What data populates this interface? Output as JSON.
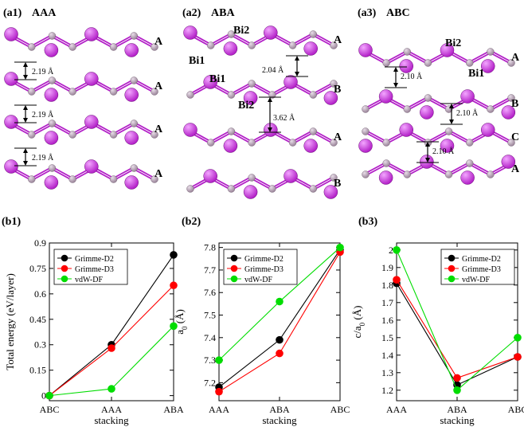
{
  "top_panels": [
    {
      "id": "a1",
      "title": "(a1)",
      "stack": "AAA",
      "layer_labels": [
        "A",
        "A",
        "A",
        "A"
      ],
      "dist_labels": [
        "2.19 Å",
        "2.19 Å",
        "2.19 Å"
      ]
    },
    {
      "id": "a2",
      "title": "(a2)",
      "stack": "ABA",
      "layer_labels": [
        "A",
        "B",
        "A",
        "B"
      ],
      "dist_labels": [
        "2.04 Å",
        "3.62 Å"
      ],
      "atom_labels": [
        "Bi2",
        "Bi1",
        "Bi1",
        "Bi2"
      ]
    },
    {
      "id": "a3",
      "title": "(a3)",
      "stack": "ABC",
      "layer_labels": [
        "A",
        "B",
        "C",
        "A"
      ],
      "dist_labels": [
        "2.10 Å",
        "2.10 Å",
        "2.10 Å"
      ],
      "atom_labels": [
        "Bi2",
        "Bi1"
      ]
    }
  ],
  "colors": {
    "bi": "#b21fc7",
    "p": "#9a8499",
    "grimme_d2": "#000000",
    "grimme_d3": "#ff0000",
    "vdw_df": "#00dd00"
  },
  "chart_data": [
    {
      "id": "b1",
      "panel_title": "(b1)",
      "type": "line",
      "xlabel": "stacking",
      "ylabel": "Total energy (eV/layer)",
      "categories": [
        "ABC",
        "AAA",
        "ABA"
      ],
      "ylim": [
        -0.03,
        0.9
      ],
      "yticks": [
        "0",
        "0.15",
        "0.3",
        "0.45",
        "0.6",
        "0.75",
        "0.9"
      ],
      "legend": "top-left",
      "series": [
        {
          "name": "Grimme-D2",
          "values": [
            0,
            0.3,
            0.83
          ]
        },
        {
          "name": "Grimme-D3",
          "values": [
            0,
            0.28,
            0.65
          ]
        },
        {
          "name": "vdW-DF",
          "values": [
            0,
            0.04,
            0.41
          ]
        }
      ]
    },
    {
      "id": "b2",
      "panel_title": "(b2)",
      "type": "line",
      "xlabel": "stacking",
      "ylabel": "a0 (Å)",
      "categories": [
        "AAA",
        "ABA",
        "ABC"
      ],
      "ylim": [
        7.12,
        7.82
      ],
      "yticks": [
        "7.2",
        "7.3",
        "7.4",
        "7.5",
        "7.6",
        "7.7",
        "7.8"
      ],
      "legend": "top-left",
      "series": [
        {
          "name": "Grimme-D2",
          "values": [
            7.18,
            7.39,
            7.79
          ]
        },
        {
          "name": "Grimme-D3",
          "values": [
            7.16,
            7.33,
            7.78
          ]
        },
        {
          "name": "vdW-DF",
          "values": [
            7.3,
            7.56,
            7.8
          ]
        }
      ]
    },
    {
      "id": "b3",
      "panel_title": "(b3)",
      "type": "line",
      "xlabel": "stacking",
      "ylabel": "c/a0 (Å)",
      "categories": [
        "AAA",
        "ABA",
        "ABC"
      ],
      "ylim": [
        1.14,
        2.04
      ],
      "yticks": [
        "1.2",
        "1.3",
        "1.4",
        "1.5",
        "1.6",
        "1.7",
        "1.8",
        "1.9",
        "2"
      ],
      "legend": "top-right",
      "series": [
        {
          "name": "Grimme-D2",
          "values": [
            1.81,
            1.23,
            1.39
          ]
        },
        {
          "name": "Grimme-D3",
          "values": [
            1.83,
            1.27,
            1.39
          ]
        },
        {
          "name": "vdW-DF",
          "values": [
            2.0,
            1.2,
            1.5
          ]
        }
      ]
    }
  ]
}
